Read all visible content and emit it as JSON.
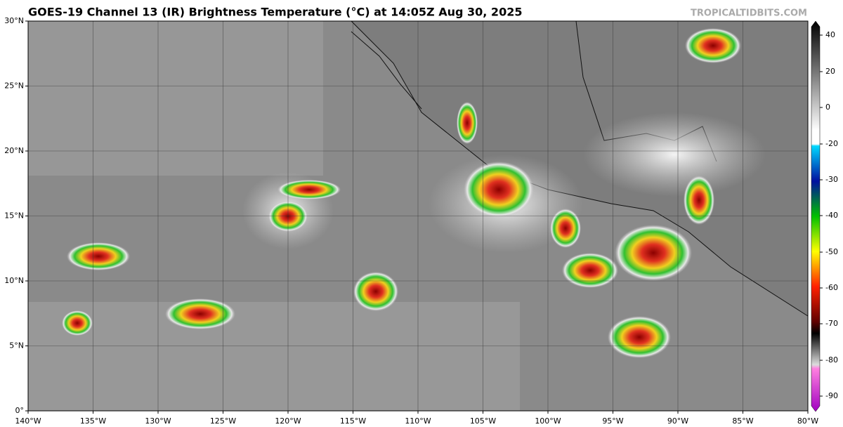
{
  "header": {
    "title": "GOES-19 Channel 13 (IR) Brightness Temperature (°C) at 14:05Z Aug 30, 2025",
    "source": "TROPICALTIDBITS.COM"
  },
  "map": {
    "lat_labels": [
      "30°N",
      "25°N",
      "20°N",
      "15°N",
      "10°N",
      "5°N",
      "0°"
    ],
    "lon_labels": [
      "140°W",
      "135°W",
      "130°W",
      "125°W",
      "120°W",
      "115°W",
      "110°W",
      "105°W",
      "100°W",
      "95°W",
      "90°W",
      "85°W",
      "80°W"
    ]
  },
  "colorbar": {
    "ticks": [
      40,
      20,
      0,
      -20,
      -30,
      -40,
      -50,
      -60,
      -70,
      -80,
      -90
    ]
  }
}
